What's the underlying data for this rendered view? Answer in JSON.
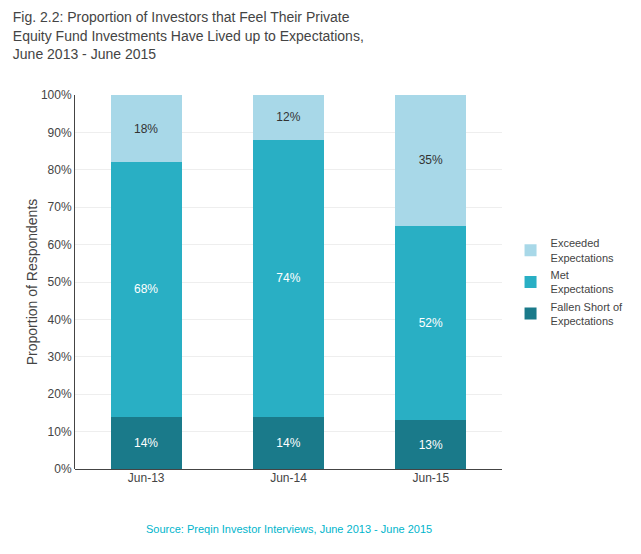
{
  "chart_data": {
    "type": "bar",
    "title": "Fig. 2.2: Proportion of Investors that Feel Their Private\nEquity Fund Investments Have Lived up to Expectations,\nJune 2013 - June 2015",
    "categories": [
      "Jun-13",
      "Jun-14",
      "Jun-15"
    ],
    "series": [
      {
        "name": "Fallen Short of\nExpectations",
        "color": "#1a7a8a",
        "values": [
          14,
          14,
          13
        ],
        "value_labels": [
          "14%",
          "14%",
          "13%"
        ]
      },
      {
        "name": "Met\nExpectations",
        "color": "#29afc4",
        "values": [
          68,
          74,
          52
        ],
        "value_labels": [
          "68%",
          "74%",
          "52%"
        ]
      },
      {
        "name": "Exceeded\nExpectations",
        "color": "#a8d8e8",
        "values": [
          18,
          12,
          35
        ],
        "value_labels": [
          "18%",
          "12%",
          "35%"
        ]
      }
    ],
    "y_label": "Proportion of Respondents",
    "ylim": [
      0,
      100
    ],
    "yticks": [
      {
        "value": 0,
        "label": "0%"
      },
      {
        "value": 10,
        "label": "10%"
      },
      {
        "value": 20,
        "label": "20%"
      },
      {
        "value": 30,
        "label": "30%"
      },
      {
        "value": 40,
        "label": "40%"
      },
      {
        "value": 50,
        "label": "50%"
      },
      {
        "value": 60,
        "label": "60%"
      },
      {
        "value": 70,
        "label": "70%"
      },
      {
        "value": 80,
        "label": "80%"
      },
      {
        "value": 90,
        "label": "90%"
      },
      {
        "value": 100,
        "label": "100%"
      }
    ],
    "annotations": [
      "Source: Preqin Investor Interviews, June 2013 - June 2015"
    ],
    "stacked": true,
    "data_labels": true,
    "grid": true,
    "legend": "right"
  }
}
